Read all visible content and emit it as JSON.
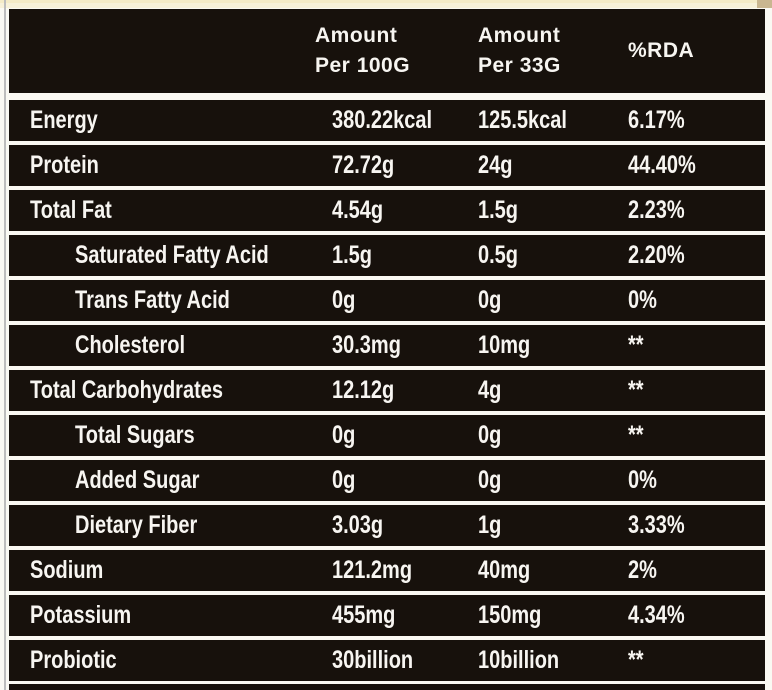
{
  "colors": {
    "row_black": "#17110c",
    "text_white": "#f7f5f1",
    "page_cream": "#faf9f3",
    "top_strip": "#f7f1d9",
    "corner_tan": "#c9b690",
    "edge_gray": "#bdbdbd"
  },
  "table": {
    "header": {
      "col1_line1": "Amount",
      "col1_line2": "Per 100G",
      "col2_line1": "Amount",
      "col2_line2": "Per 33G",
      "col3": "%RDA"
    },
    "rows": [
      {
        "label": "Energy",
        "indent": false,
        "per100g": "380.22kcal",
        "per33g": "125.5kcal",
        "rda": "6.17%"
      },
      {
        "label": "Protein",
        "indent": false,
        "per100g": "72.72g",
        "per33g": "24g",
        "rda": "44.40%"
      },
      {
        "label": "Total Fat",
        "indent": false,
        "per100g": "4.54g",
        "per33g": "1.5g",
        "rda": "2.23%"
      },
      {
        "label": "Saturated Fatty Acid",
        "indent": true,
        "per100g": "1.5g",
        "per33g": "0.5g",
        "rda": "2.20%"
      },
      {
        "label": "Trans Fatty Acid",
        "indent": true,
        "per100g": "0g",
        "per33g": "0g",
        "rda": "0%"
      },
      {
        "label": "Cholesterol",
        "indent": true,
        "per100g": "30.3mg",
        "per33g": "10mg",
        "rda": "**"
      },
      {
        "label": "Total Carbohydrates",
        "indent": false,
        "per100g": "12.12g",
        "per33g": "4g",
        "rda": "**"
      },
      {
        "label": "Total Sugars",
        "indent": true,
        "per100g": "0g",
        "per33g": "0g",
        "rda": "**"
      },
      {
        "label": "Added Sugar",
        "indent": true,
        "per100g": "0g",
        "per33g": "0g",
        "rda": "0%"
      },
      {
        "label": "Dietary Fiber",
        "indent": true,
        "per100g": "3.03g",
        "per33g": "1g",
        "rda": "3.33%"
      },
      {
        "label": "Sodium",
        "indent": false,
        "per100g": "121.2mg",
        "per33g": "40mg",
        "rda": "2%"
      },
      {
        "label": "Potassium",
        "indent": false,
        "per100g": "455mg",
        "per33g": "150mg",
        "rda": "4.34%"
      },
      {
        "label": "Probiotic",
        "indent": false,
        "per100g": "30billion",
        "per33g": "10billion",
        "rda": "**"
      }
    ]
  }
}
